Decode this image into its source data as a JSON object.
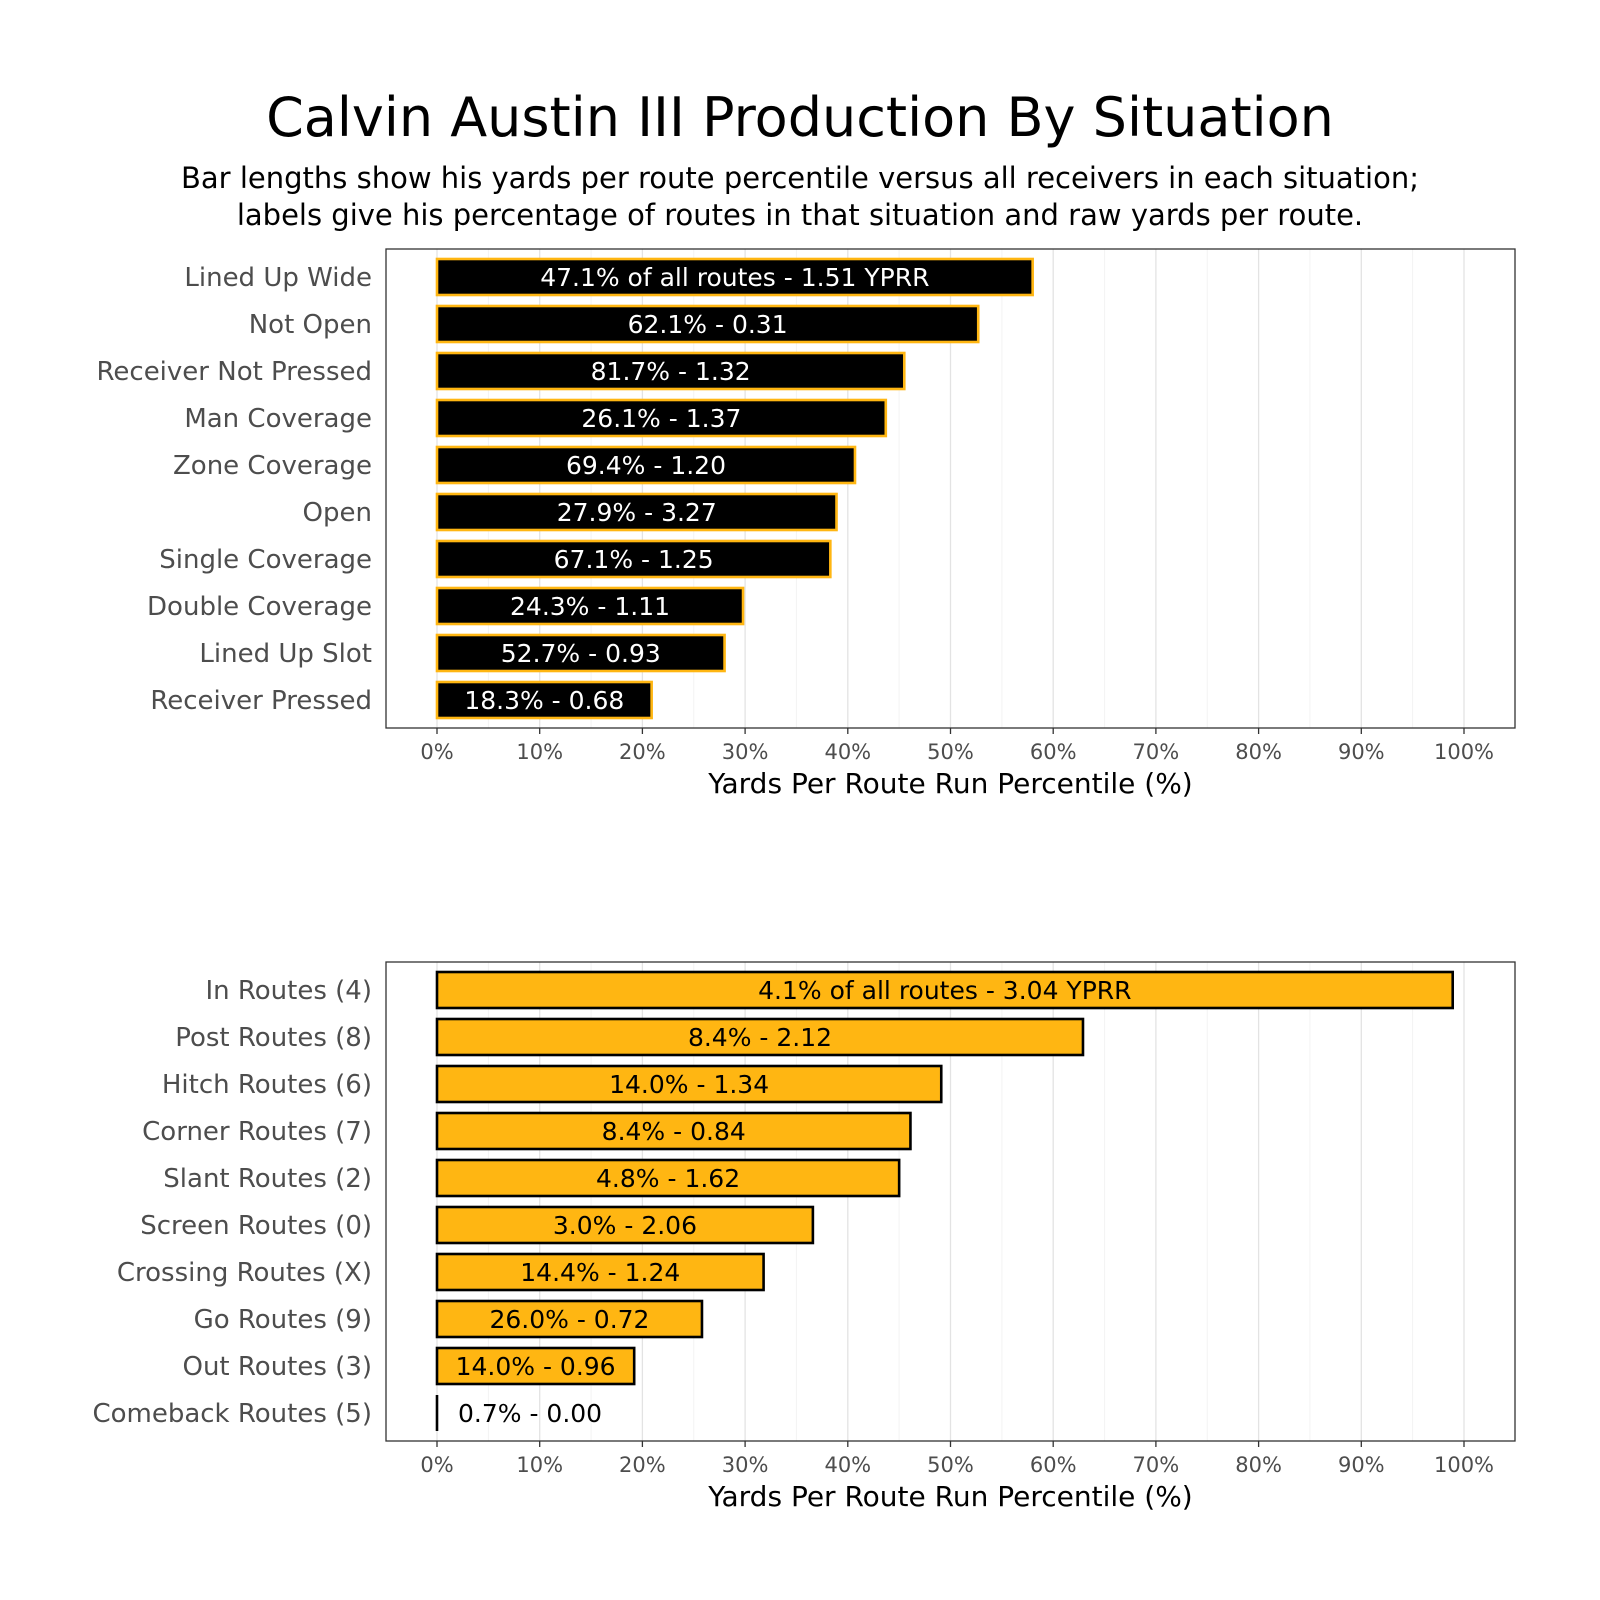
{
  "title": "Calvin Austin III Production By Situation",
  "subtitle": [
    "Bar lengths show his yards per route percentile versus all receivers in each situation;",
    "labels give his percentage of routes in that situation and raw yards per route."
  ],
  "colors": {
    "black": "#000000",
    "gold": "#FFB612",
    "grid_major": "#e3e3e3",
    "grid_minor": "#f3f3f3",
    "axis_text": "#4d4d4d"
  },
  "chart_data": [
    {
      "type": "bar",
      "orientation": "horizontal",
      "xlabel": "Yards Per Route Run Percentile (%)",
      "xlim": [
        0,
        100
      ],
      "x_ticks": [
        "0%",
        "10%",
        "20%",
        "30%",
        "40%",
        "50%",
        "60%",
        "70%",
        "80%",
        "90%",
        "100%"
      ],
      "bar_fill": "#000000",
      "bar_stroke": "#FFB612",
      "label_color": "#ffffff",
      "categories": [
        "Lined Up Wide",
        "Not Open",
        "Receiver Not Pressed",
        "Man Coverage",
        "Zone Coverage",
        "Open",
        "Single Coverage",
        "Double Coverage",
        "Lined Up Slot",
        "Receiver Pressed"
      ],
      "values": [
        58,
        52.7,
        45.5,
        43.7,
        40.7,
        38.9,
        38.3,
        29.8,
        28,
        20.9
      ],
      "labels": [
        "47.1% of all routes - 1.51 YPRR",
        "62.1% - 0.31",
        "81.7% - 1.32",
        "26.1% - 1.37",
        "69.4% - 1.20",
        "27.9% - 3.27",
        "67.1% - 1.25",
        "24.3% - 1.11",
        "52.7% - 0.93",
        "18.3% - 0.68"
      ]
    },
    {
      "type": "bar",
      "orientation": "horizontal",
      "xlabel": "Yards Per Route Run Percentile (%)",
      "xlim": [
        0,
        100
      ],
      "x_ticks": [
        "0%",
        "10%",
        "20%",
        "30%",
        "40%",
        "50%",
        "60%",
        "70%",
        "80%",
        "90%",
        "100%"
      ],
      "bar_fill": "#FFB612",
      "bar_stroke": "#000000",
      "label_color": "#000000",
      "categories": [
        "In Routes (4)",
        "Post Routes (8)",
        "Hitch Routes (6)",
        "Corner Routes (7)",
        "Slant Routes (2)",
        "Screen Routes (0)",
        "Crossing Routes (X)",
        "Go Routes (9)",
        "Out Routes (3)",
        "Comeback Routes (5)"
      ],
      "values": [
        98.9,
        62.9,
        49.1,
        46.1,
        45,
        36.6,
        31.8,
        25.8,
        19.2,
        0
      ],
      "labels": [
        "4.1% of all routes - 3.04 YPRR",
        "8.4% - 2.12",
        "14.0% - 1.34",
        "8.4% - 0.84",
        "4.8% - 1.62",
        "3.0% - 2.06",
        "14.4% - 1.24",
        "26.0% - 0.72",
        "14.0% - 0.96",
        "0.7% - 0.00"
      ]
    }
  ]
}
